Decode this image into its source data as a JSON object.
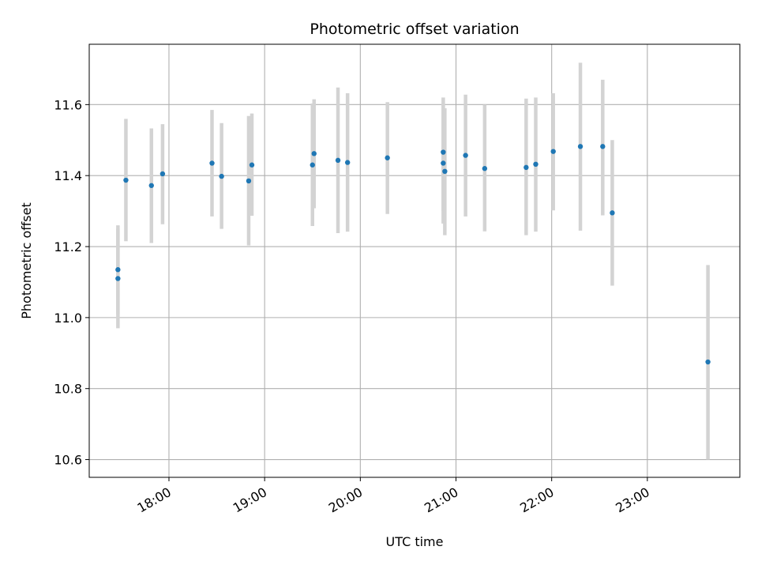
{
  "chart_data": {
    "type": "scatter",
    "title": "Photometric offset variation",
    "xlabel": "UTC time",
    "ylabel": "Photometric offset",
    "x_unit": "time (HH:MM, UTC)",
    "xlim": [
      "17:10",
      "23:58"
    ],
    "ylim": [
      10.55,
      11.77
    ],
    "x_ticks": [
      "18:00",
      "19:00",
      "20:00",
      "21:00",
      "22:00",
      "23:00"
    ],
    "y_ticks": [
      10.6,
      10.8,
      11.0,
      11.2,
      11.4,
      11.6
    ],
    "y_tick_labels": [
      "10.6",
      "10.8",
      "11.0",
      "11.2",
      "11.4",
      "11.6"
    ],
    "grid": true,
    "point_color": "#1f77b4",
    "errorbar_color": "#d3d3d3",
    "points": [
      {
        "x": "17:28",
        "y": 11.135,
        "lo": 11.01,
        "hi": 11.26
      },
      {
        "x": "17:28",
        "y": 11.11,
        "lo": 10.97,
        "hi": 11.25
      },
      {
        "x": "17:33",
        "y": 11.387,
        "lo": 11.215,
        "hi": 11.56
      },
      {
        "x": "17:49",
        "y": 11.372,
        "lo": 11.21,
        "hi": 11.533
      },
      {
        "x": "17:56",
        "y": 11.405,
        "lo": 11.263,
        "hi": 11.545
      },
      {
        "x": "18:27",
        "y": 11.435,
        "lo": 11.285,
        "hi": 11.585
      },
      {
        "x": "18:33",
        "y": 11.398,
        "lo": 11.25,
        "hi": 11.548
      },
      {
        "x": "18:50",
        "y": 11.385,
        "lo": 11.203,
        "hi": 11.568
      },
      {
        "x": "18:52",
        "y": 11.43,
        "lo": 11.287,
        "hi": 11.575
      },
      {
        "x": "19:30",
        "y": 11.43,
        "lo": 11.258,
        "hi": 11.603
      },
      {
        "x": "19:31",
        "y": 11.462,
        "lo": 11.308,
        "hi": 11.615
      },
      {
        "x": "19:46",
        "y": 11.443,
        "lo": 11.238,
        "hi": 11.648
      },
      {
        "x": "19:52",
        "y": 11.437,
        "lo": 11.242,
        "hi": 11.632
      },
      {
        "x": "20:17",
        "y": 11.45,
        "lo": 11.292,
        "hi": 11.607
      },
      {
        "x": "20:52",
        "y": 11.466,
        "lo": 11.3,
        "hi": 11.62
      },
      {
        "x": "20:52",
        "y": 11.435,
        "lo": 11.265,
        "hi": 11.6
      },
      {
        "x": "20:53",
        "y": 11.412,
        "lo": 11.232,
        "hi": 11.59
      },
      {
        "x": "21:06",
        "y": 11.457,
        "lo": 11.285,
        "hi": 11.628
      },
      {
        "x": "21:18",
        "y": 11.42,
        "lo": 11.243,
        "hi": 11.6
      },
      {
        "x": "21:44",
        "y": 11.423,
        "lo": 11.232,
        "hi": 11.617
      },
      {
        "x": "21:50",
        "y": 11.432,
        "lo": 11.242,
        "hi": 11.62
      },
      {
        "x": "22:01",
        "y": 11.468,
        "lo": 11.302,
        "hi": 11.632
      },
      {
        "x": "22:18",
        "y": 11.482,
        "lo": 11.245,
        "hi": 11.718
      },
      {
        "x": "22:32",
        "y": 11.482,
        "lo": 11.288,
        "hi": 11.67
      },
      {
        "x": "22:38",
        "y": 11.295,
        "lo": 11.09,
        "hi": 11.5
      },
      {
        "x": "23:38",
        "y": 10.875,
        "lo": 10.6,
        "hi": 11.148
      }
    ]
  }
}
